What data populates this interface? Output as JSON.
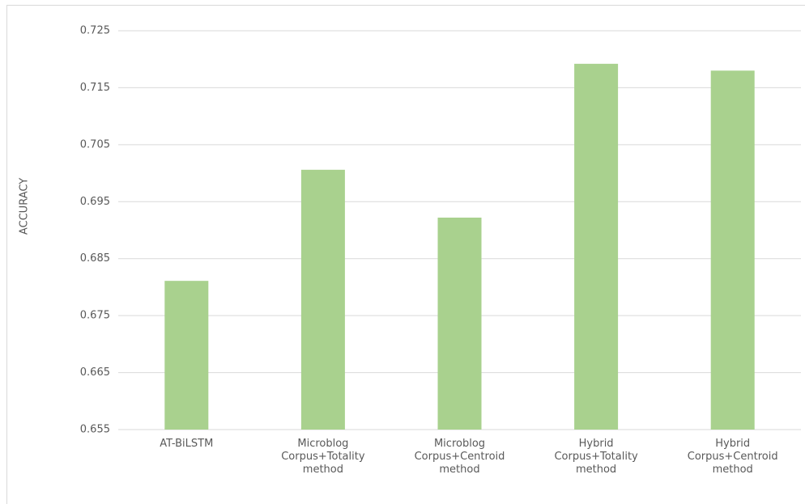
{
  "chart_data": {
    "type": "bar",
    "y_label": "ACCURACY",
    "categories": [
      "AT-BiLSTM",
      "Microblog Corpus+Totality method",
      "Microblog Corpus+Centroid method",
      "Hybrid Corpus+Totality method",
      "Hybrid Corpus+Centroid method"
    ],
    "values": [
      0.6811,
      0.7006,
      0.6922,
      0.7192,
      0.718
    ],
    "color": "#a9d18e",
    "ylim": [
      0.655,
      0.725
    ],
    "yticks": [
      0.655,
      0.665,
      0.675,
      0.685,
      0.695,
      0.705,
      0.715,
      0.725
    ],
    "grid": true
  }
}
